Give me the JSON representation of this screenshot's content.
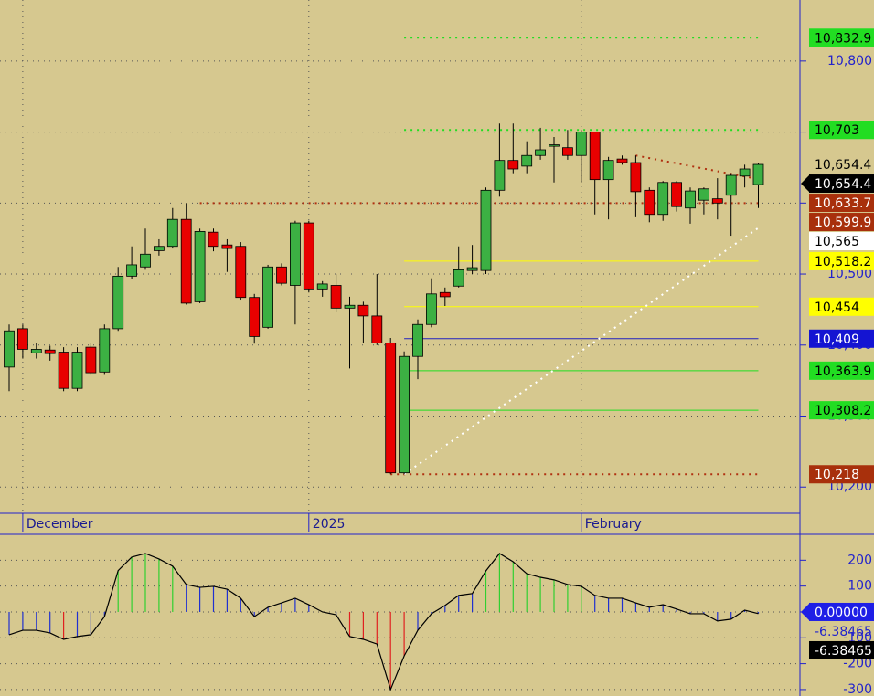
{
  "chart_data": [
    {
      "type": "candlestick",
      "categories": [
        null,
        "December",
        null,
        null,
        null,
        null,
        null,
        null,
        null,
        null,
        null,
        null,
        null,
        null,
        null,
        null,
        null,
        null,
        null,
        null,
        null,
        null,
        "2025",
        null,
        null,
        null,
        null,
        null,
        null,
        null,
        null,
        null,
        null,
        null,
        null,
        null,
        null,
        null,
        null,
        null,
        null,
        null,
        "February",
        null,
        null,
        null,
        null,
        null,
        null,
        null,
        null,
        null,
        null,
        null,
        null,
        null
      ],
      "open": [
        10369,
        10423,
        10389,
        10393,
        10390,
        10339,
        10397,
        10362,
        10423,
        10497,
        10510,
        10533,
        10539,
        10577,
        10461,
        10559,
        10541,
        10539,
        10467,
        10425,
        10510,
        10484,
        10572,
        10479,
        10484,
        10452,
        10456,
        10441,
        10403,
        10220,
        10384,
        10429,
        10474,
        10483,
        10505,
        10505,
        10618,
        10660,
        10652,
        10667,
        10680,
        10678,
        10667,
        10700,
        10633,
        10662,
        10657,
        10618,
        10584,
        10629,
        10593,
        10604,
        10606,
        10611,
        10638,
        10626
      ],
      "high": [
        10429,
        10429,
        10403,
        10399,
        10397,
        10397,
        10403,
        10429,
        10510,
        10539,
        10564,
        10549,
        10593,
        10600,
        10564,
        10564,
        10549,
        10545,
        10472,
        10513,
        10515,
        10575,
        10575,
        10490,
        10500,
        10468,
        10461,
        10500,
        10410,
        10391,
        10436,
        10494,
        10481,
        10539,
        10541,
        10622,
        10712,
        10712,
        10687,
        10706,
        10693,
        10703,
        10703,
        10700,
        10665,
        10667,
        10667,
        10622,
        10631,
        10631,
        10622,
        10622,
        10635,
        10642,
        10654,
        10657
      ],
      "low": [
        10335,
        10381,
        10381,
        10378,
        10335,
        10335,
        10358,
        10358,
        10420,
        10493,
        10506,
        10526,
        10536,
        10457,
        10459,
        10532,
        10503,
        10464,
        10402,
        10423,
        10484,
        10429,
        10474,
        10468,
        10446,
        10367,
        10403,
        10400,
        10218,
        10218,
        10352,
        10425,
        10455,
        10481,
        10500,
        10500,
        10609,
        10642,
        10642,
        10661,
        10629,
        10661,
        10629,
        10584,
        10577,
        10654,
        10580,
        10573,
        10575,
        10588,
        10571,
        10584,
        10577,
        10554,
        10622,
        10593
      ],
      "close": [
        10420,
        10394,
        10394,
        10388,
        10339,
        10390,
        10361,
        10423,
        10497,
        10513,
        10528,
        10539,
        10577,
        10459,
        10560,
        10539,
        10536,
        10467,
        10412,
        10510,
        10487,
        10572,
        10479,
        10486,
        10452,
        10456,
        10441,
        10403,
        10220,
        10384,
        10429,
        10472,
        10468,
        10506,
        10509,
        10618,
        10660,
        10648,
        10667,
        10675,
        10682,
        10667,
        10700,
        10633,
        10660,
        10657,
        10616,
        10584,
        10629,
        10595,
        10617,
        10620,
        10600,
        10639,
        10648,
        10654.4
      ],
      "up_color": "#3cb043",
      "down_color": "#e80000",
      "ylim": [
        10163,
        10886
      ],
      "yticks": [
        {
          "value": 10800,
          "label": "10,800"
        },
        {
          "value": 10700,
          "label": "10,700"
        },
        {
          "value": 10600,
          "label": "10,600"
        },
        {
          "value": 10500,
          "label": "10,500"
        },
        {
          "value": 10400,
          "label": "10,400"
        },
        {
          "value": 10300,
          "label": "10,300"
        },
        {
          "value": 10200,
          "label": "10,200"
        }
      ],
      "grid": true,
      "lines": [
        {
          "from": 29,
          "to": 55,
          "start": 10832.9,
          "end": 10832.9,
          "color": "#22dd22",
          "dotted": true
        },
        {
          "from": 29,
          "to": 55,
          "start": 10703,
          "end": 10703,
          "color": "#22dd22",
          "dotted": true
        },
        {
          "from": 14,
          "to": 55,
          "start": 10599.9,
          "end": 10599.9,
          "color": "#b03010",
          "dotted": true
        },
        {
          "from": 29,
          "to": 55,
          "start": 10518.2,
          "end": 10518.2,
          "color": "#ffff00",
          "dotted": false
        },
        {
          "from": 29,
          "to": 55,
          "start": 10454,
          "end": 10454,
          "color": "#ffff00",
          "dotted": false
        },
        {
          "from": 29,
          "to": 55,
          "start": 10409,
          "end": 10409,
          "color": "#2020c0",
          "dotted": false
        },
        {
          "from": 29,
          "to": 55,
          "start": 10363.9,
          "end": 10363.9,
          "color": "#22dd22",
          "dotted": false
        },
        {
          "from": 29,
          "to": 55,
          "start": 10308.2,
          "end": 10308.2,
          "color": "#22dd22",
          "dotted": false
        },
        {
          "from": 28,
          "to": 55,
          "start": 10218,
          "end": 10218,
          "color": "#b03010",
          "dotted": true
        },
        {
          "from": 46,
          "to": 55,
          "start": 10667,
          "end": 10633.7,
          "color": "#b03010",
          "dotted": true
        },
        {
          "from": 29,
          "to": 55,
          "start": 10218,
          "end": 10565,
          "color": "#ffffff",
          "dotted": true
        }
      ],
      "price_labels": [
        {
          "value": 10832.9,
          "label": "10,832.9",
          "fill": "#22dd22",
          "text_color": "#000000",
          "arrow": false
        },
        {
          "value": 10703,
          "label": "10,703",
          "fill": "#22dd22",
          "text_color": "#000000",
          "arrow": false
        },
        {
          "value": 10654.4,
          "label": "10,654.4",
          "fill": null,
          "text_color": "#000000",
          "arrow": false
        },
        {
          "value": 10654.4,
          "label": "10,654.4",
          "fill": "#000000",
          "text_color": "#ffffff",
          "arrow": true
        },
        {
          "value": 10633.7,
          "label": "10,633.7",
          "fill": "#a8300c",
          "text_color": "#ffffff",
          "arrow": false
        },
        {
          "value": 10599.9,
          "label": "10,599.9",
          "fill": "#a8300c",
          "text_color": "#ffffff",
          "arrow": false
        },
        {
          "value": 10565,
          "label": "10,565",
          "fill": "#ffffff",
          "text_color": "#000000",
          "arrow": false
        },
        {
          "value": 10518.2,
          "label": "10,518.2",
          "fill": "#ffff00",
          "text_color": "#000000",
          "arrow": false
        },
        {
          "value": 10454,
          "label": "10,454",
          "fill": "#ffff00",
          "text_color": "#000000",
          "arrow": false
        },
        {
          "value": 10409,
          "label": "10,409",
          "fill": "#1414d2",
          "text_color": "#ffffff",
          "arrow": false
        },
        {
          "value": 10363.9,
          "label": "10,363.9",
          "fill": "#22dd22",
          "text_color": "#000000",
          "arrow": false
        },
        {
          "value": 10308.2,
          "label": "10,308.2",
          "fill": "#22dd22",
          "text_color": "#000000",
          "arrow": false
        },
        {
          "value": 10218,
          "label": "10,218",
          "fill": "#a8300c",
          "text_color": "#ffffff",
          "arrow": false
        }
      ]
    },
    {
      "type": "histogram-line",
      "values": [
        -88,
        -71,
        -71,
        -81,
        -106,
        -95,
        -88,
        -18,
        160,
        212,
        226,
        205,
        177,
        106,
        95,
        99,
        88,
        53,
        -18,
        18,
        35,
        53,
        28,
        0,
        -11,
        -95,
        -106,
        -124,
        -300,
        -170,
        -71,
        -7,
        25,
        64,
        71,
        159,
        226,
        194,
        148,
        134,
        124,
        106,
        99,
        64,
        53,
        53,
        35,
        18,
        28,
        11,
        -7,
        -7,
        -35,
        -28,
        7,
        -6.38465
      ],
      "bar_colors": [
        "#2030d0",
        "#2030d0",
        "#2030d0",
        "#2030d0",
        "#e02020",
        "#2030d0",
        "#2030d0",
        "#2030d0",
        "#30d030",
        "#30d030",
        "#30d030",
        "#30d030",
        "#30d030",
        "#2030d0",
        "#2030d0",
        "#2030d0",
        "#2030d0",
        "#2030d0",
        "#2030d0",
        "#2030d0",
        "#2030d0",
        "#2030d0",
        "#2030d0",
        "#2030d0",
        "#2030d0",
        "#e02020",
        "#e02020",
        "#e02020",
        "#e02020",
        "#e02020",
        "#2030d0",
        "#2030d0",
        "#2030d0",
        "#2030d0",
        "#2030d0",
        "#30d030",
        "#30d030",
        "#30d030",
        "#30d030",
        "#30d030",
        "#30d030",
        "#30d030",
        "#30d030",
        "#2030d0",
        "#2030d0",
        "#2030d0",
        "#2030d0",
        "#2030d0",
        "#2030d0",
        "#2030d0",
        "#2030d0",
        "#2030d0",
        "#2030d0",
        "#2030d0",
        "#2030d0",
        "#2030d0"
      ],
      "line_color": "#000000",
      "ylim": [
        -325,
        293
      ],
      "yticks": [
        200,
        100,
        0,
        -100,
        -200,
        -300
      ],
      "grid": true,
      "price_labels": [
        {
          "value": 0,
          "label": "0.00000",
          "fill": "#1e1ee6",
          "text_color": "#ffffff",
          "arrow": true
        },
        {
          "value": -6.38465,
          "label": "-6.38465",
          "fill": null,
          "text_color": "#2222cc",
          "arrow": false
        },
        {
          "value": -6.38465,
          "label": "-6.38465",
          "fill": "#000000",
          "text_color": "#ffffff",
          "arrow": false
        }
      ]
    }
  ]
}
